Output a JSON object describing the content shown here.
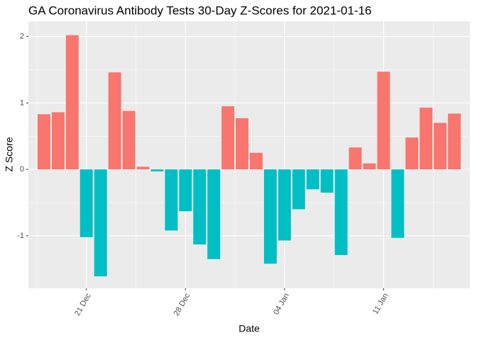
{
  "chart_data": {
    "type": "bar",
    "title": "GA Coronavirus Antibody Tests 30-Day Z-Scores for 2021-01-16",
    "x_label": "Date",
    "y_label": "Z Score",
    "categories": [
      null,
      null,
      null,
      "21 Dec",
      null,
      null,
      null,
      null,
      null,
      null,
      "28 Dec",
      null,
      null,
      null,
      null,
      null,
      null,
      "04 Jan",
      null,
      null,
      null,
      null,
      null,
      null,
      "11 Jan",
      null,
      null,
      null,
      null,
      null
    ],
    "values": [
      0.83,
      0.86,
      2.02,
      -1.02,
      -1.61,
      1.46,
      0.88,
      0.04,
      -0.03,
      -0.92,
      -0.63,
      -1.13,
      -1.35,
      0.95,
      0.77,
      0.25,
      -1.42,
      -1.07,
      -0.6,
      -0.3,
      -0.35,
      -1.29,
      0.33,
      0.09,
      1.47,
      -1.03,
      0.48,
      0.93,
      0.7,
      0.84
    ],
    "color": "#F8766D",
    "negative_color": "#00BFC4",
    "ylim": [
      -1.79,
      2.23
    ],
    "yticks": [
      -1,
      0,
      1,
      2
    ],
    "grid": true
  }
}
